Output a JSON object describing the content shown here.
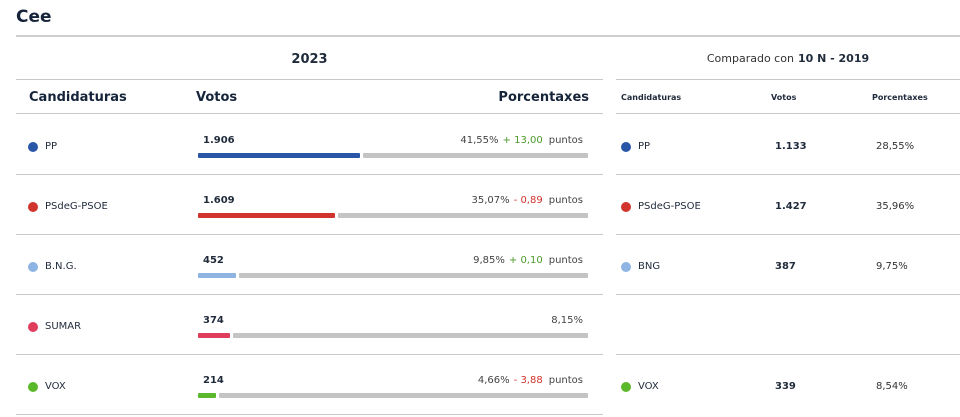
{
  "location": "Cee",
  "current": {
    "year": "2023",
    "headers": {
      "party": "Candidaturas",
      "votes": "Votos",
      "pct": "Porcentaxes"
    },
    "points_label": "puntos",
    "rows": [
      {
        "party": "PP",
        "color": "#2a56a7",
        "votes": "1.906",
        "share": 0.4155,
        "pct": "41,55%",
        "diff": "+ 13,00",
        "diff_sign": "pos"
      },
      {
        "party": "PSdeG-PSOE",
        "color": "#d0342c",
        "votes": "1.609",
        "share": 0.3507,
        "pct": "35,07%",
        "diff": "- 0,89",
        "diff_sign": "neg"
      },
      {
        "party": "B.N.G.",
        "color": "#8db4e2",
        "votes": "452",
        "share": 0.0985,
        "pct": "9,85%",
        "diff": "+ 0,10",
        "diff_sign": "pos"
      },
      {
        "party": "SUMAR",
        "color": "#e03c5c",
        "votes": "374",
        "share": 0.0815,
        "pct": "8,15%",
        "diff": "",
        "diff_sign": ""
      },
      {
        "party": "VOX",
        "color": "#5cb82b",
        "votes": "214",
        "share": 0.0466,
        "pct": "4,66%",
        "diff": "- 3,88",
        "diff_sign": "neg"
      }
    ]
  },
  "comparison": {
    "label": "Comparado con",
    "election": "10 N - 2019",
    "headers": {
      "party": "Candidaturas",
      "votes": "Votos",
      "pct": "Porcentaxes"
    },
    "rows": [
      {
        "party": "PP",
        "color": "#2a56a7",
        "votes": "1.133",
        "pct": "28,55%"
      },
      {
        "party": "PSdeG-PSOE",
        "color": "#d0342c",
        "votes": "1.427",
        "pct": "35,96%"
      },
      {
        "party": "BNG",
        "color": "#8db4e2",
        "votes": "387",
        "pct": "9,75%"
      },
      null,
      {
        "party": "VOX",
        "color": "#5cb82b",
        "votes": "339",
        "pct": "8,54%"
      }
    ]
  }
}
